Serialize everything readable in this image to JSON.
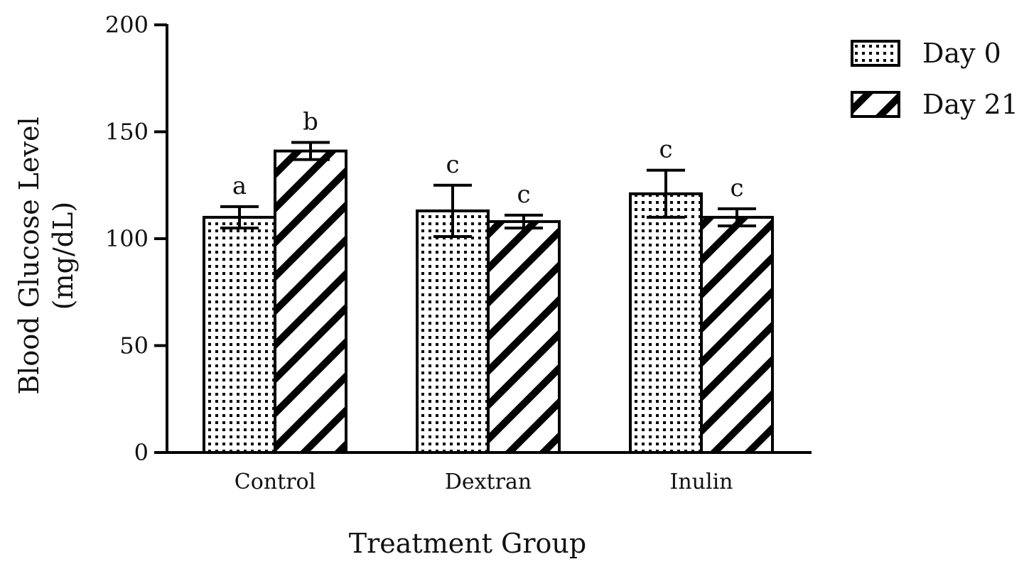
{
  "chart_data": {
    "type": "bar",
    "title": "",
    "xlabel": "Treatment Group",
    "ylabel_line1": "Blood Glucose Level",
    "ylabel_line2": "(mg/dL)",
    "ylim": [
      0,
      200
    ],
    "yticks": [
      0,
      50,
      100,
      150,
      200
    ],
    "ytick_labels": [
      "0",
      "50",
      "100",
      "150",
      "200"
    ],
    "categories": [
      "Control",
      "Dextran",
      "Inulin"
    ],
    "series": [
      {
        "name": "Day 0",
        "pattern": "dots",
        "values": [
          110,
          113,
          121
        ],
        "errors": [
          5,
          12,
          11
        ],
        "significance": [
          "a",
          "c",
          "c"
        ]
      },
      {
        "name": "Day 21",
        "pattern": "diagonal-stripes",
        "values": [
          141,
          108,
          110
        ],
        "errors": [
          4,
          3,
          4
        ],
        "significance": [
          "b",
          "c",
          "c"
        ]
      }
    ],
    "legend_position": "top-right",
    "grid": false
  }
}
